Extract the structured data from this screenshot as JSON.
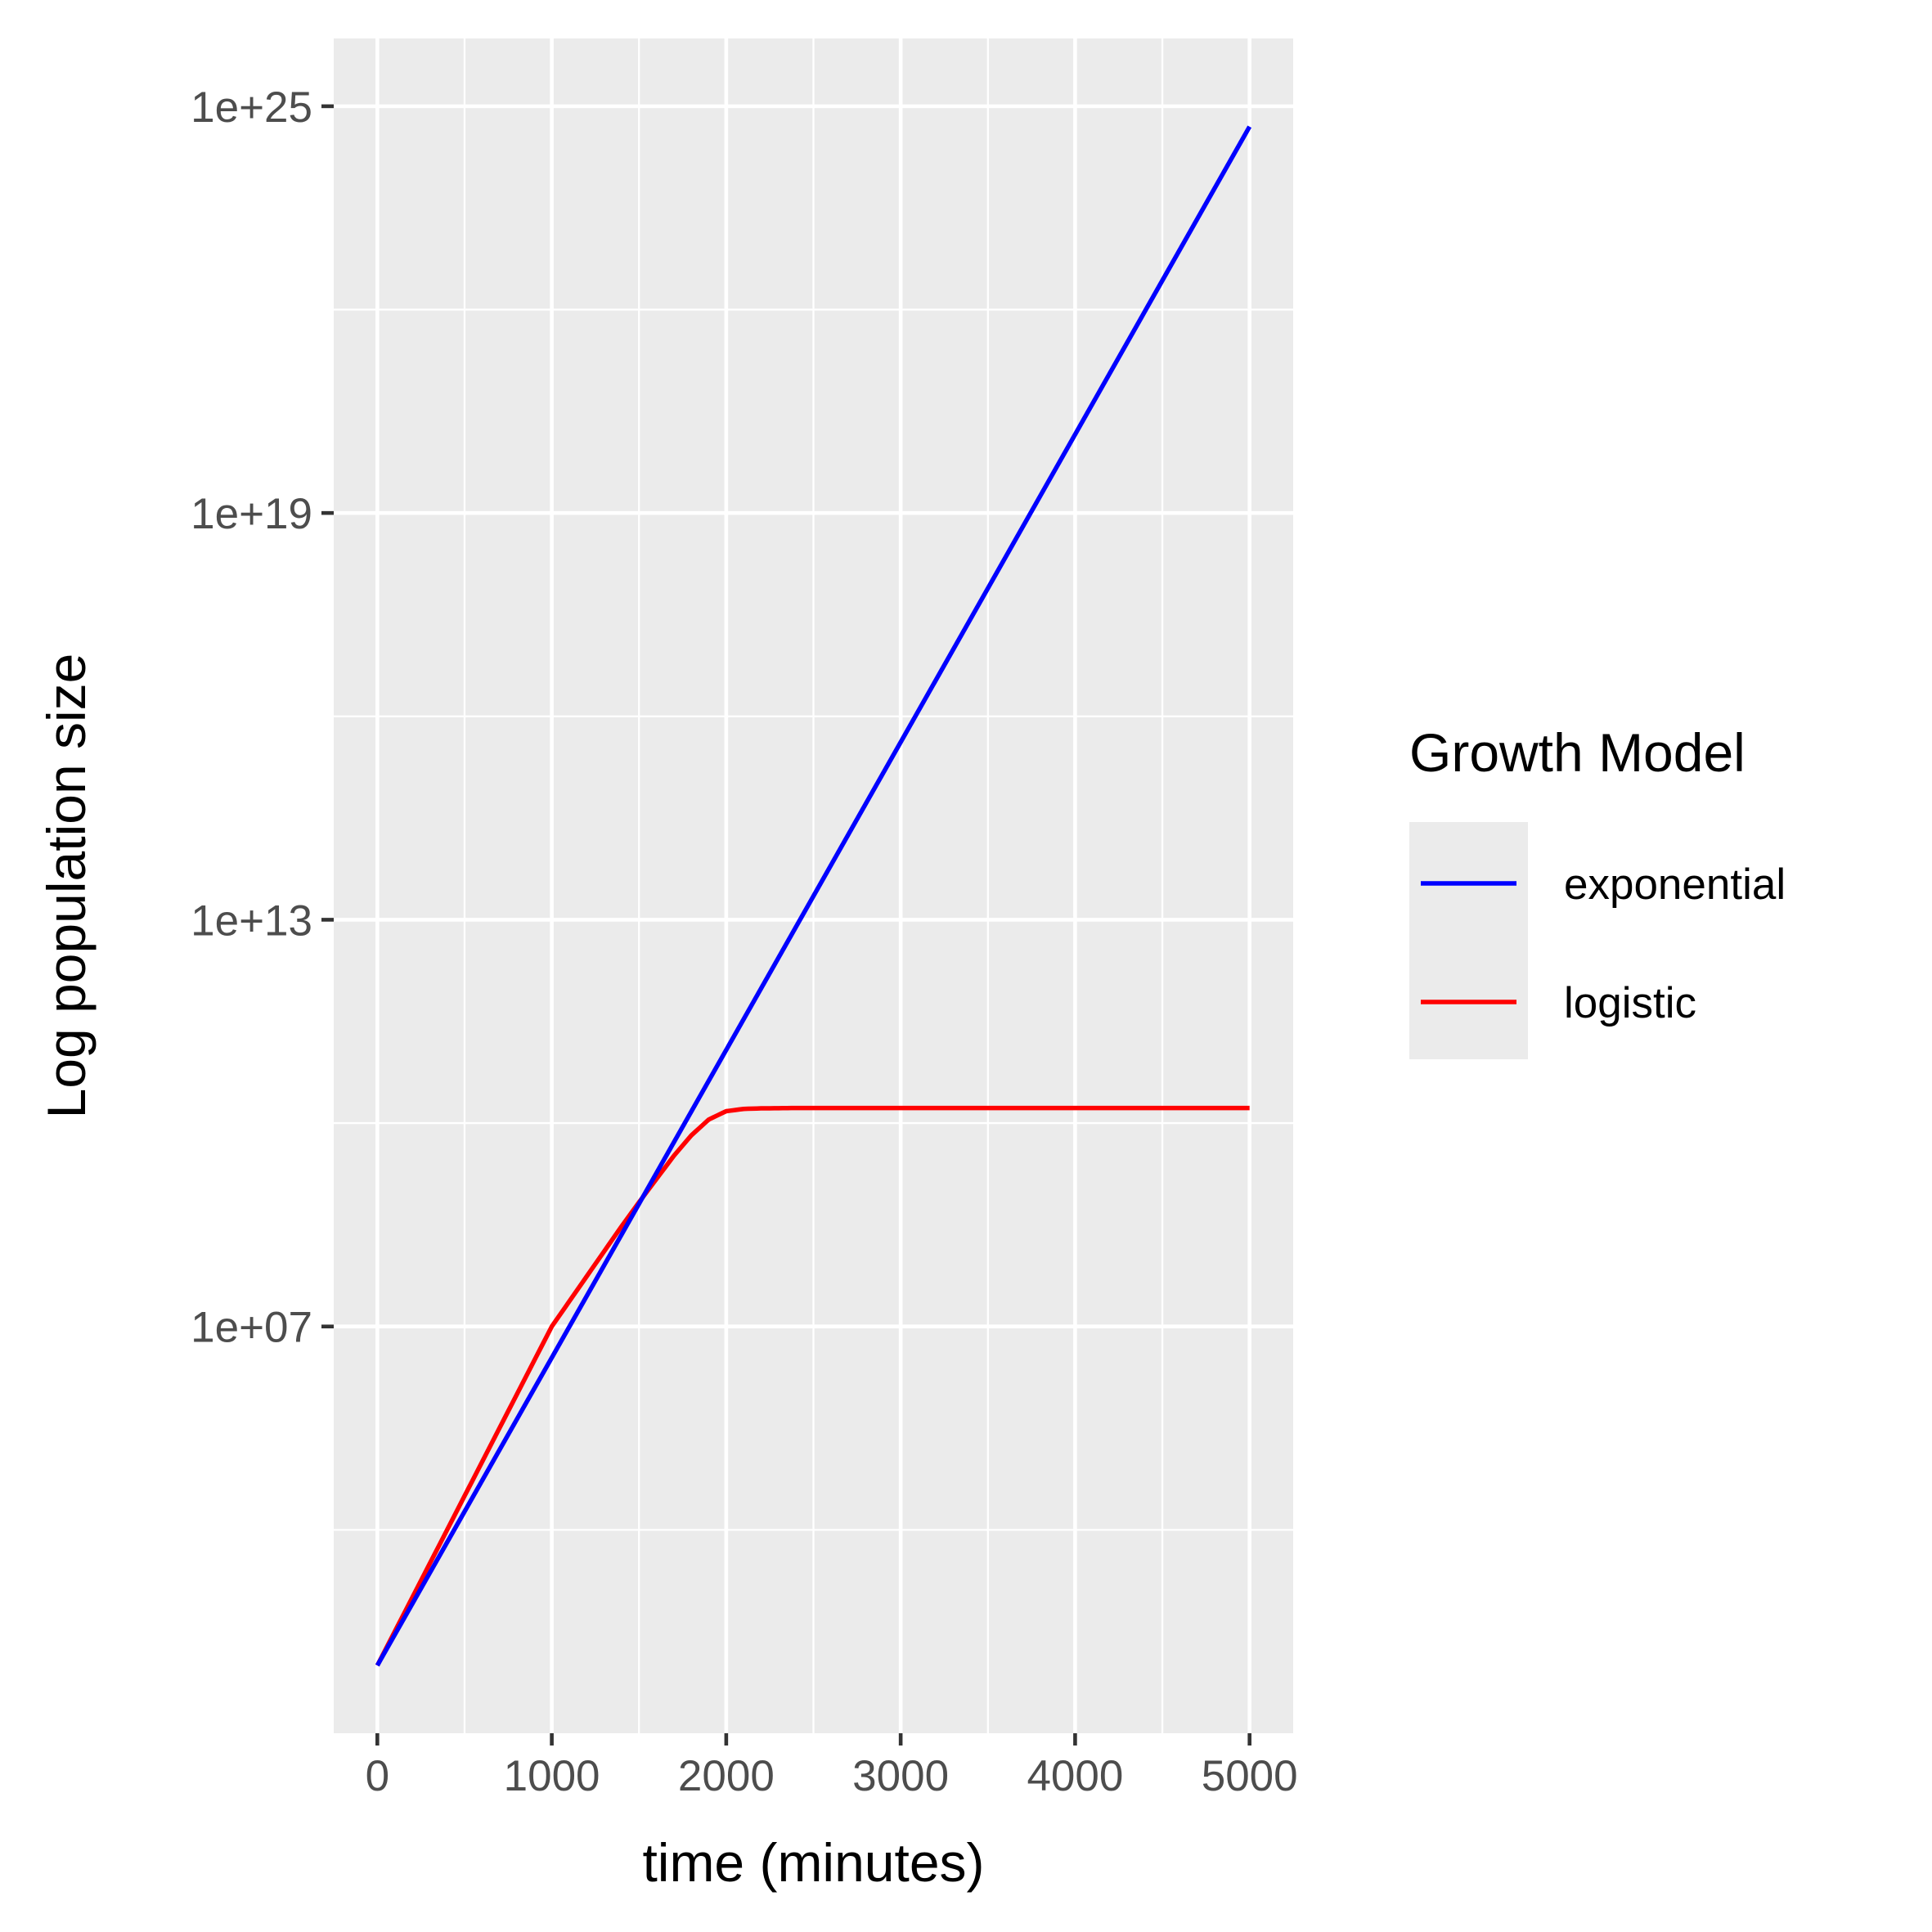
{
  "chart_data": {
    "type": "line",
    "xlabel": "time (minutes)",
    "ylabel": "Log population size",
    "y_scale": "log10",
    "xlim": [
      -250,
      5250
    ],
    "ylim": [
      10,
      1e+26
    ],
    "x_ticks": [
      0,
      1000,
      2000,
      3000,
      4000,
      5000
    ],
    "x_tick_labels": [
      "0",
      "1000",
      "2000",
      "3000",
      "4000",
      "5000"
    ],
    "y_ticks": [
      10000000.0,
      10000000000000.0,
      1e+19,
      1e+25
    ],
    "y_tick_labels": [
      "1e+07",
      "1e+13",
      "1e+19",
      "1e+25"
    ],
    "grid": true,
    "legend": {
      "title": "Growth Model",
      "position": "right",
      "entries": [
        {
          "label": "exponential",
          "color": "#0000ff"
        },
        {
          "label": "logistic",
          "color": "#ff0000"
        }
      ]
    },
    "series": [
      {
        "name": "exponential",
        "color": "#0000ff",
        "x": [
          0,
          5000
        ],
        "y": [
          100,
          5e+24
        ]
      },
      {
        "name": "logistic",
        "color": "#ff0000",
        "x": [
          0,
          1000,
          1400,
          1500,
          1600,
          1700,
          1800,
          1900,
          2000,
          2100,
          2200,
          2400,
          3000,
          4000,
          5000
        ],
        "y": [
          100,
          10000000.0,
          300000000.0,
          680000000.0,
          1500000000.0,
          3300000000.0,
          6600000000.0,
          11300000000.0,
          15000000000.0,
          16200000000.0,
          16500000000.0,
          16700000000.0,
          16700000000.0,
          16700000000.0,
          16700000000.0
        ]
      }
    ]
  }
}
